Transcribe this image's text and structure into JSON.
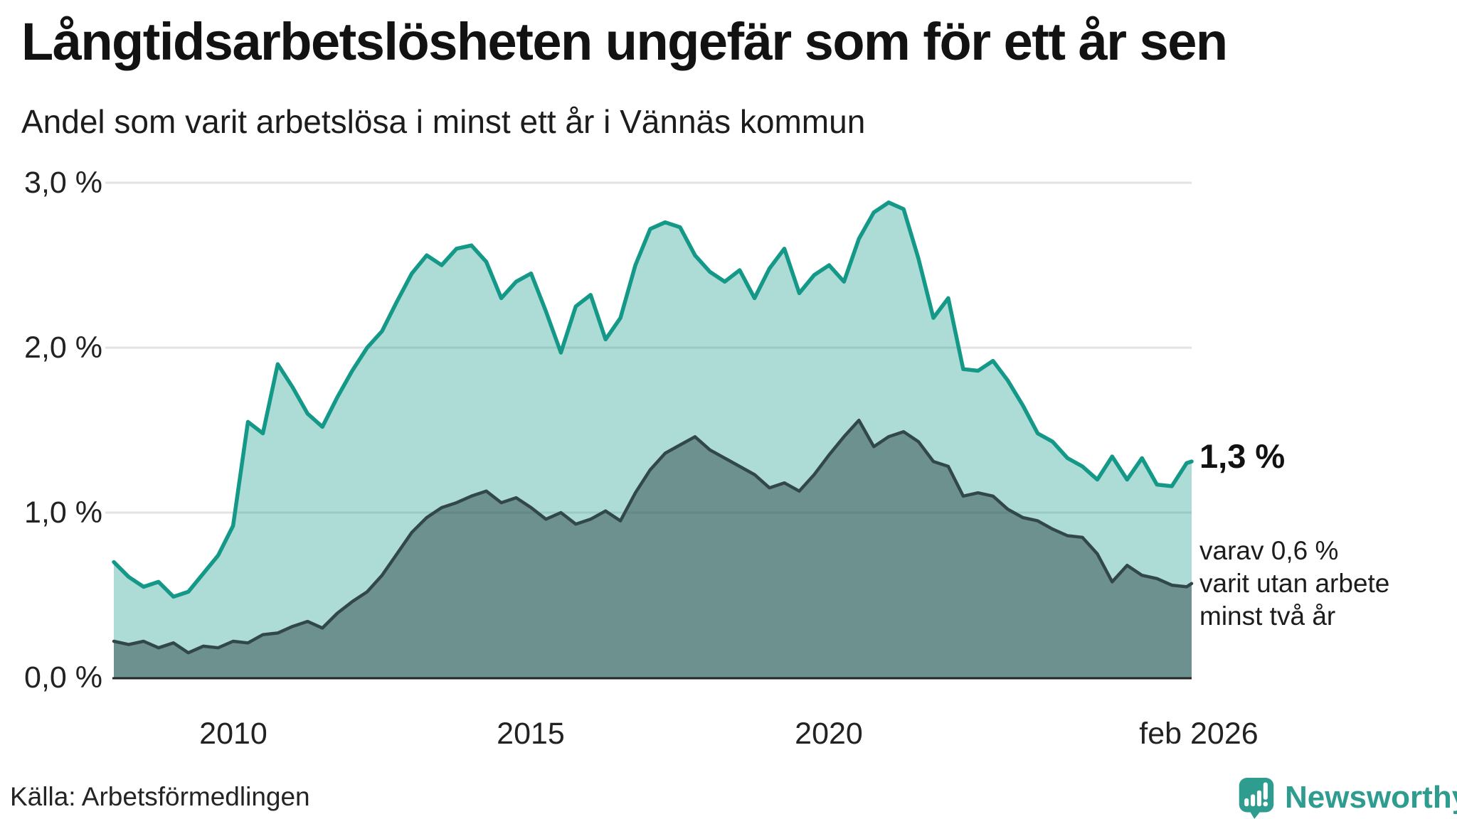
{
  "header": {
    "title": "Långtidsarbetslösheten ungefär som för ett år sen",
    "subtitle": "Andel som varit arbetslösa i minst ett år i Vännäs kommun"
  },
  "chart_data": {
    "type": "area",
    "title": "Långtidsarbetslösheten ungefär som för ett år sen",
    "subtitle": "Andel som varit arbetslösa i minst ett år i Vännäs kommun",
    "unit": "%",
    "grid": true,
    "legend_position": "none",
    "xlim": [
      2008.0,
      2026.083
    ],
    "ylim": [
      0.0,
      3.1
    ],
    "x_tick_values": [
      2010,
      2015,
      2020,
      2026.083
    ],
    "x_tick_labels": [
      "2010",
      "2015",
      "2020",
      "feb 2026"
    ],
    "y_tick_values": [
      3,
      2,
      1,
      0
    ],
    "y_tick_labels": [
      "3,0 %",
      "2,0 %",
      "1,0 %",
      "0,0 %"
    ],
    "colors": {
      "line_1yr": "#149888",
      "fill_1yr": "rgba(20,152,136,0.35)",
      "line_2yr": "#32474a",
      "fill_2yr": "rgba(47,77,78,0.52)",
      "gridline": "#e3e3e7",
      "baseline": "#262626",
      "brand_teal": "#2e9c8e"
    },
    "series": [
      {
        "name": "Andel arbetslösa minst ett år",
        "end_label": "1,3 %",
        "end_value": 1.31,
        "points": [
          [
            2008.0,
            0.7
          ],
          [
            2008.25,
            0.61
          ],
          [
            2008.5,
            0.55
          ],
          [
            2008.75,
            0.58
          ],
          [
            2009.0,
            0.49
          ],
          [
            2009.25,
            0.52
          ],
          [
            2009.5,
            0.63
          ],
          [
            2009.75,
            0.74
          ],
          [
            2010.0,
            0.92
          ],
          [
            2010.25,
            1.55
          ],
          [
            2010.5,
            1.48
          ],
          [
            2010.75,
            1.9
          ],
          [
            2011.0,
            1.76
          ],
          [
            2011.25,
            1.6
          ],
          [
            2011.5,
            1.52
          ],
          [
            2011.75,
            1.7
          ],
          [
            2012.0,
            1.86
          ],
          [
            2012.25,
            2.0
          ],
          [
            2012.5,
            2.1
          ],
          [
            2012.75,
            2.28
          ],
          [
            2013.0,
            2.45
          ],
          [
            2013.25,
            2.56
          ],
          [
            2013.5,
            2.5
          ],
          [
            2013.75,
            2.6
          ],
          [
            2014.0,
            2.62
          ],
          [
            2014.25,
            2.52
          ],
          [
            2014.5,
            2.3
          ],
          [
            2014.75,
            2.4
          ],
          [
            2015.0,
            2.45
          ],
          [
            2015.25,
            2.22
          ],
          [
            2015.5,
            1.97
          ],
          [
            2015.75,
            2.25
          ],
          [
            2016.0,
            2.32
          ],
          [
            2016.25,
            2.05
          ],
          [
            2016.5,
            2.18
          ],
          [
            2016.75,
            2.5
          ],
          [
            2017.0,
            2.72
          ],
          [
            2017.25,
            2.76
          ],
          [
            2017.5,
            2.73
          ],
          [
            2017.75,
            2.56
          ],
          [
            2018.0,
            2.46
          ],
          [
            2018.25,
            2.4
          ],
          [
            2018.5,
            2.47
          ],
          [
            2018.75,
            2.3
          ],
          [
            2019.0,
            2.48
          ],
          [
            2019.25,
            2.6
          ],
          [
            2019.5,
            2.33
          ],
          [
            2019.75,
            2.44
          ],
          [
            2020.0,
            2.5
          ],
          [
            2020.25,
            2.4
          ],
          [
            2020.5,
            2.66
          ],
          [
            2020.75,
            2.82
          ],
          [
            2021.0,
            2.88
          ],
          [
            2021.25,
            2.84
          ],
          [
            2021.5,
            2.54
          ],
          [
            2021.75,
            2.18
          ],
          [
            2022.0,
            2.3
          ],
          [
            2022.25,
            1.87
          ],
          [
            2022.5,
            1.86
          ],
          [
            2022.75,
            1.92
          ],
          [
            2023.0,
            1.8
          ],
          [
            2023.25,
            1.65
          ],
          [
            2023.5,
            1.48
          ],
          [
            2023.75,
            1.43
          ],
          [
            2024.0,
            1.33
          ],
          [
            2024.25,
            1.28
          ],
          [
            2024.5,
            1.2
          ],
          [
            2024.75,
            1.34
          ],
          [
            2025.0,
            1.2
          ],
          [
            2025.25,
            1.33
          ],
          [
            2025.5,
            1.17
          ],
          [
            2025.75,
            1.16
          ],
          [
            2026.0,
            1.3
          ],
          [
            2026.083,
            1.31
          ]
        ]
      },
      {
        "name": "varav utan arbete minst två år",
        "end_label": "varav 0,6 % varit utan arbete minst två år",
        "end_value": 0.57,
        "points": [
          [
            2008.0,
            0.22
          ],
          [
            2008.25,
            0.2
          ],
          [
            2008.5,
            0.22
          ],
          [
            2008.75,
            0.18
          ],
          [
            2009.0,
            0.21
          ],
          [
            2009.25,
            0.15
          ],
          [
            2009.5,
            0.19
          ],
          [
            2009.75,
            0.18
          ],
          [
            2010.0,
            0.22
          ],
          [
            2010.25,
            0.21
          ],
          [
            2010.5,
            0.26
          ],
          [
            2010.75,
            0.27
          ],
          [
            2011.0,
            0.31
          ],
          [
            2011.25,
            0.34
          ],
          [
            2011.5,
            0.3
          ],
          [
            2011.75,
            0.39
          ],
          [
            2012.0,
            0.46
          ],
          [
            2012.25,
            0.52
          ],
          [
            2012.5,
            0.62
          ],
          [
            2012.75,
            0.75
          ],
          [
            2013.0,
            0.88
          ],
          [
            2013.25,
            0.97
          ],
          [
            2013.5,
            1.03
          ],
          [
            2013.75,
            1.06
          ],
          [
            2014.0,
            1.1
          ],
          [
            2014.25,
            1.13
          ],
          [
            2014.5,
            1.06
          ],
          [
            2014.75,
            1.09
          ],
          [
            2015.0,
            1.03
          ],
          [
            2015.25,
            0.96
          ],
          [
            2015.5,
            1.0
          ],
          [
            2015.75,
            0.93
          ],
          [
            2016.0,
            0.96
          ],
          [
            2016.25,
            1.01
          ],
          [
            2016.5,
            0.95
          ],
          [
            2016.75,
            1.12
          ],
          [
            2017.0,
            1.26
          ],
          [
            2017.25,
            1.36
          ],
          [
            2017.5,
            1.41
          ],
          [
            2017.75,
            1.46
          ],
          [
            2018.0,
            1.38
          ],
          [
            2018.25,
            1.33
          ],
          [
            2018.5,
            1.28
          ],
          [
            2018.75,
            1.23
          ],
          [
            2019.0,
            1.15
          ],
          [
            2019.25,
            1.18
          ],
          [
            2019.5,
            1.13
          ],
          [
            2019.75,
            1.23
          ],
          [
            2020.0,
            1.35
          ],
          [
            2020.25,
            1.46
          ],
          [
            2020.5,
            1.56
          ],
          [
            2020.75,
            1.4
          ],
          [
            2021.0,
            1.46
          ],
          [
            2021.25,
            1.49
          ],
          [
            2021.5,
            1.43
          ],
          [
            2021.75,
            1.31
          ],
          [
            2022.0,
            1.28
          ],
          [
            2022.25,
            1.1
          ],
          [
            2022.5,
            1.12
          ],
          [
            2022.75,
            1.1
          ],
          [
            2023.0,
            1.02
          ],
          [
            2023.25,
            0.97
          ],
          [
            2023.5,
            0.95
          ],
          [
            2023.75,
            0.9
          ],
          [
            2024.0,
            0.86
          ],
          [
            2024.25,
            0.85
          ],
          [
            2024.5,
            0.75
          ],
          [
            2024.75,
            0.58
          ],
          [
            2025.0,
            0.68
          ],
          [
            2025.25,
            0.62
          ],
          [
            2025.5,
            0.6
          ],
          [
            2025.75,
            0.56
          ],
          [
            2026.0,
            0.55
          ],
          [
            2026.083,
            0.57
          ]
        ]
      }
    ]
  },
  "annotations": {
    "end_value": "1,3 %",
    "secondary_lines": [
      "varav 0,6 %",
      "varit utan arbete",
      "minst två år"
    ]
  },
  "footer": {
    "source": "Källa: Arbetsförmedlingen",
    "brand": "Newsworthy"
  }
}
